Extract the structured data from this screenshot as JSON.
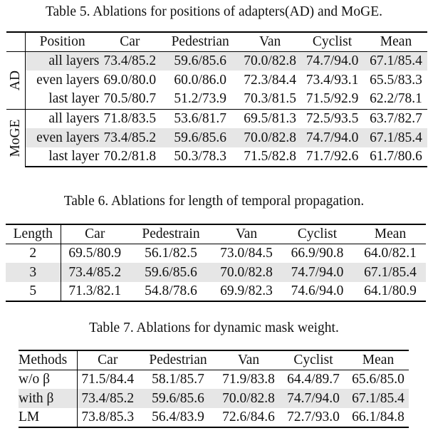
{
  "table5": {
    "caption": "Table 5. Ablations for positions of adapters(AD) and MoGE.",
    "header": [
      "Position",
      "Car",
      "Pedestrian",
      "Van",
      "Cyclist",
      "Mean"
    ],
    "groups": [
      {
        "label": "AD",
        "rows": [
          {
            "cells": [
              "all layers",
              "73.4/85.2",
              "59.6/85.6",
              "70.0/82.8",
              "74.7/94.0",
              "67.1/85.4"
            ],
            "highlight": true
          },
          {
            "cells": [
              "even layers",
              "69.0/80.0",
              "60.0/86.0",
              "72.3/84.4",
              "73.4/93.1",
              "65.5/83.3"
            ],
            "highlight": false
          },
          {
            "cells": [
              "last layer",
              "70.5/80.7",
              "51.2/73.9",
              "70.3/81.5",
              "71.5/92.9",
              "62.2/78.1"
            ],
            "highlight": false
          }
        ]
      },
      {
        "label": "MoGE",
        "rows": [
          {
            "cells": [
              "all layers",
              "71.8/83.5",
              "53.6/81.7",
              "69.5/81.3",
              "72.5/93.5",
              "63.7/82.7"
            ],
            "highlight": false
          },
          {
            "cells": [
              "even layers",
              "73.4/85.2",
              "59.6/85.6",
              "70.0/82.8",
              "74.7/94.0",
              "67.1/85.4"
            ],
            "highlight": true
          },
          {
            "cells": [
              "last layer",
              "70.2/81.8",
              "50.3/78.3",
              "71.5/82.8",
              "71.7/92.6",
              "61.7/80.6"
            ],
            "highlight": false
          }
        ]
      }
    ]
  },
  "table6": {
    "caption": "Table 6. Ablations for length of temporal propagation.",
    "header": [
      "Length",
      "Car",
      "Pedestrain",
      "Van",
      "Cyclist",
      "Mean"
    ],
    "rows": [
      {
        "cells": [
          "2",
          "69.5/80.9",
          "56.1/82.5",
          "73.0/84.5",
          "66.9/90.8",
          "64.0/82.1"
        ],
        "highlight": false
      },
      {
        "cells": [
          "3",
          "73.4/85.2",
          "59.6/85.6",
          "70.0/82.8",
          "74.7/94.0",
          "67.1/85.4"
        ],
        "highlight": true
      },
      {
        "cells": [
          "5",
          "71.3/82.1",
          "54.8/78.6",
          "69.9/82.3",
          "74.6/94.0",
          "64.1/80.9"
        ],
        "highlight": false
      }
    ]
  },
  "table7": {
    "caption": "Table 7. Ablations for dynamic mask weight.",
    "header": [
      "Methods",
      "Car",
      "Pedestrian",
      "Van",
      "Cyclist",
      "Mean"
    ],
    "rows": [
      {
        "cells": [
          "w/o β",
          "71.5/84.4",
          "58.1/85.7",
          "71.9/83.8",
          "64.4/89.7",
          "65.6/85.0"
        ],
        "highlight": false
      },
      {
        "cells": [
          "with β",
          "73.4/85.2",
          "59.6/85.6",
          "70.0/82.8",
          "74.7/94.0",
          "67.1/85.4"
        ],
        "highlight": true
      },
      {
        "cells": [
          "LM",
          "73.8/85.3",
          "56.4/83.9",
          "72.6/84.6",
          "72.7/93.0",
          "66.1/84.8"
        ],
        "highlight": false
      }
    ]
  }
}
